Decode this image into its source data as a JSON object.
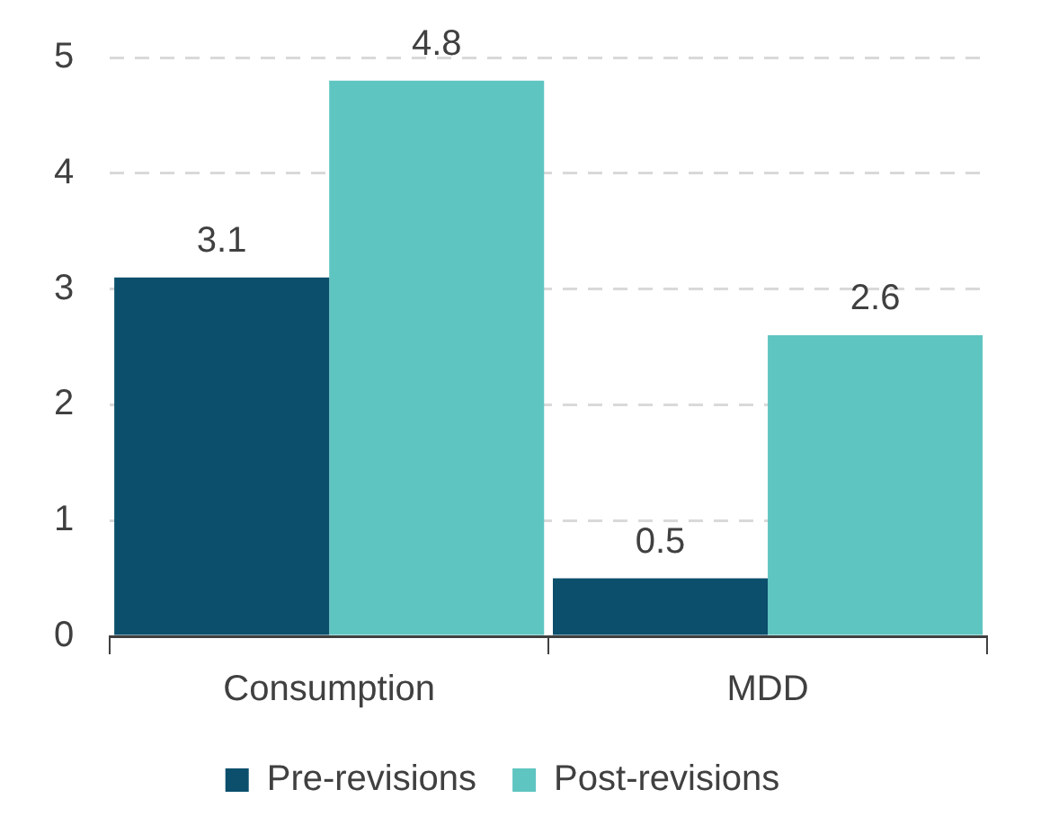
{
  "chart_data": {
    "type": "bar",
    "categories": [
      "Consumption",
      "MDD"
    ],
    "series": [
      {
        "name": "Pre-revisions",
        "color": "#0b4f6c",
        "values": [
          3.1,
          0.5
        ]
      },
      {
        "name": "Post-revisions",
        "color": "#5fc5c1",
        "values": [
          4.8,
          2.6
        ]
      }
    ],
    "ylim": [
      0,
      5
    ],
    "yticks": [
      0,
      1,
      2,
      3,
      4,
      5
    ],
    "grid": "y",
    "legend": "bottom",
    "data_labels": true
  }
}
